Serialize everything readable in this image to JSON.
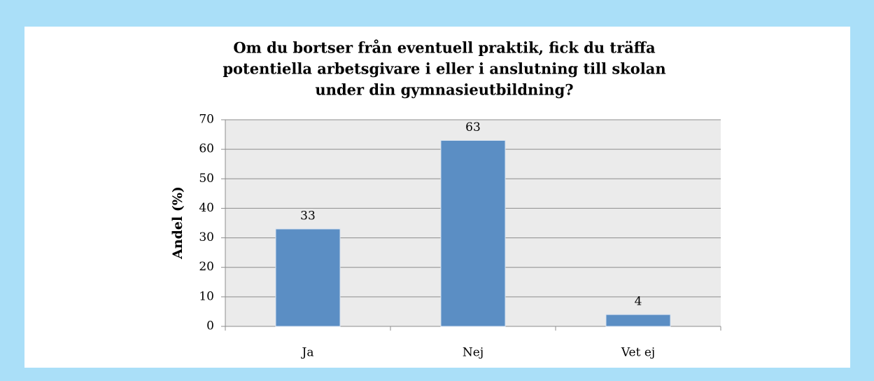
{
  "chart_data": {
    "type": "bar",
    "title": [
      "Om du bortser från eventuell praktik, fick du träffa",
      "potentiella arbetsgivare i eller i anslutning till skolan",
      "under din gymnasieutbildning?"
    ],
    "y_label": "Andel (%)",
    "categories": [
      "Ja",
      "Nej",
      "Vet ej"
    ],
    "values": [
      33,
      63,
      4
    ],
    "color": "#5b8ec4",
    "ylim": [
      0,
      70
    ],
    "yticks": [
      0,
      10,
      20,
      30,
      40,
      50,
      60,
      70
    ],
    "grid": true
  }
}
